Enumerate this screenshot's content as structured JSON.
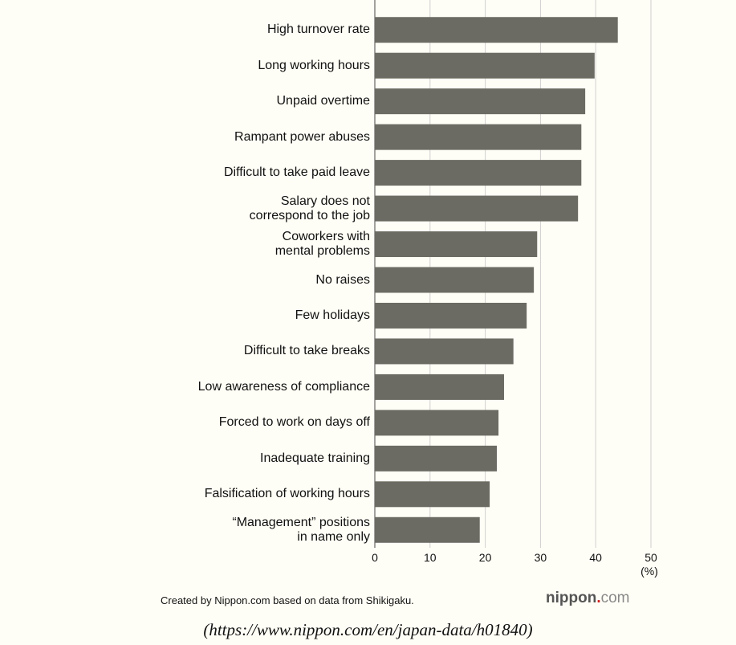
{
  "chart_data": {
    "type": "barh",
    "categories": [
      "High turnover rate",
      "Long working hours",
      "Unpaid overtime",
      "Rampant power abuses",
      "Difficult to take paid leave",
      "Salary does not\ncorrespond to the job",
      "Coworkers with\nmental problems",
      "No raises",
      "Few holidays",
      "Difficult to take breaks",
      "Low awareness of compliance",
      "Forced to work on days off",
      "Inadequate training",
      "Falsification of working hours",
      "“Management” positions\nin name only"
    ],
    "values": [
      44.0,
      39.8,
      38.1,
      37.4,
      37.4,
      36.8,
      29.4,
      28.8,
      27.5,
      25.1,
      23.4,
      22.4,
      22.1,
      20.8,
      19.0
    ],
    "color": "#6b6b63",
    "xlim": [
      0,
      50
    ],
    "xticks": [
      0,
      10,
      20,
      30,
      40,
      50
    ],
    "xlabel": "(%)",
    "grid": true,
    "source": "Created by Nippon.com based on data from Shikigaku.",
    "logo": {
      "main": "nippon",
      "dot": ".",
      "suffix": "com"
    },
    "caption": "(https://www.nippon.com/en/japan-data/h01840)"
  }
}
